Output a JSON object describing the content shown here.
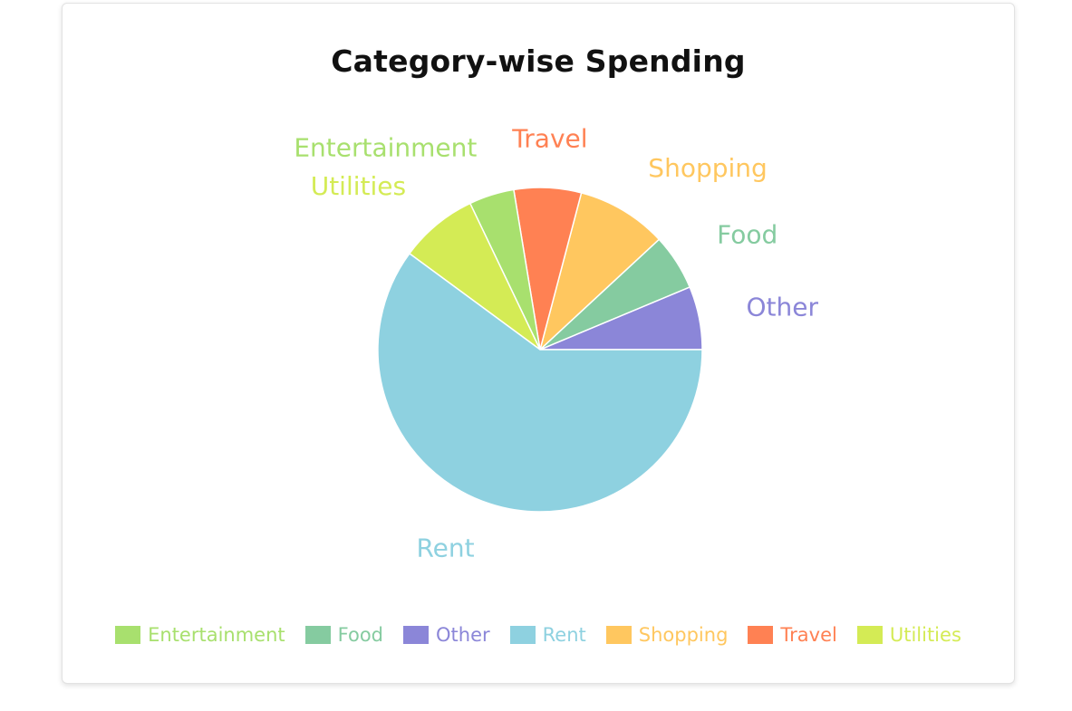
{
  "chart_data": {
    "type": "pie",
    "title": "Category-wise Spending",
    "legend_position": "bottom",
    "slices": [
      {
        "label": "Other",
        "value": 6.3,
        "color": "#8b86d8"
      },
      {
        "label": "Food",
        "value": 5.6,
        "color": "#85cba0"
      },
      {
        "label": "Shopping",
        "value": 9.0,
        "color": "#ffc75f"
      },
      {
        "label": "Travel",
        "value": 6.7,
        "color": "#ff8153"
      },
      {
        "label": "Entertainment",
        "value": 4.5,
        "color": "#a8e06e"
      },
      {
        "label": "Utilities",
        "value": 7.8,
        "color": "#d4eb55"
      },
      {
        "label": "Rent",
        "value": 60.1,
        "color": "#8ed1e0"
      }
    ],
    "legend": [
      "Entertainment",
      "Food",
      "Other",
      "Rent",
      "Shopping",
      "Travel",
      "Utilities"
    ]
  }
}
